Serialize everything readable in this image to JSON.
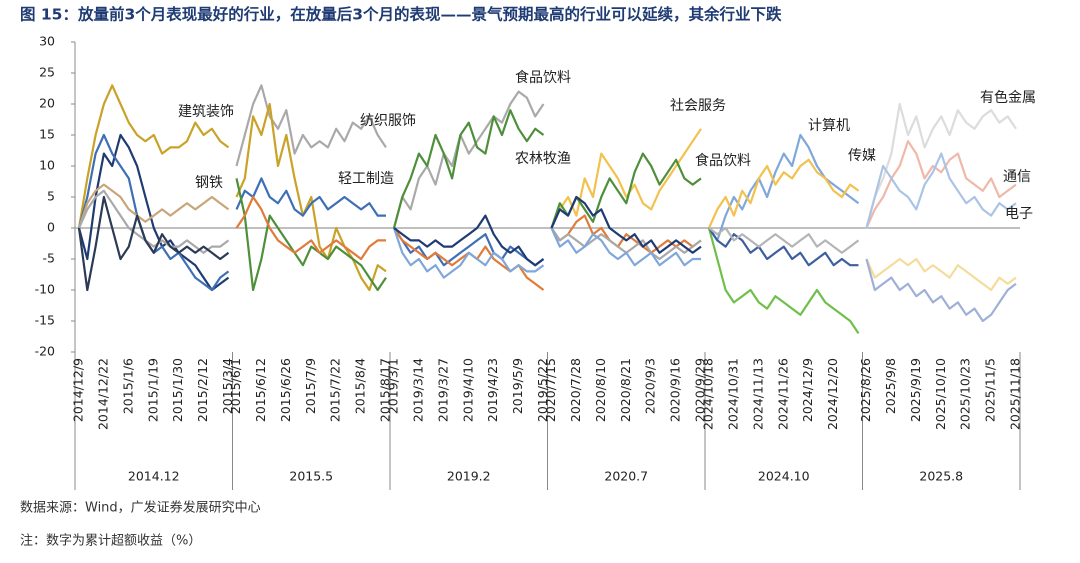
{
  "chart_data": {
    "type": "line",
    "title": "图 15：放量前3个月表现最好的行业，在放量后3个月的表现——景气预期最高的行业可以延续，其余行业下跌",
    "ylim": [
      -20,
      30
    ],
    "yticks": [
      -20,
      -15,
      -10,
      -5,
      0,
      5,
      10,
      15,
      20,
      25,
      30
    ],
    "zero_line": true,
    "groups": [
      {
        "label": "2014.12",
        "categories": [
          "2014/12/9",
          null,
          null,
          "2014/12/22",
          null,
          null,
          "2015/1/6",
          null,
          null,
          "2015/1/19",
          null,
          null,
          "2015/1/30",
          null,
          null,
          "2015/2/12",
          null,
          null,
          "2015/3/4"
        ],
        "series": [
          {
            "color": "#c9a227",
            "values": [
              0,
              8,
              15,
              20,
              23,
              20,
              17,
              15,
              14,
              15,
              12,
              13,
              13,
              14,
              17,
              15,
              16,
              14,
              13
            ]
          },
          {
            "color": "#1f3b73",
            "values": [
              0,
              -5,
              5,
              12,
              10,
              15,
              13,
              10,
              5,
              0,
              -3,
              -2,
              -4,
              -5,
              -6,
              -8,
              -10,
              -9,
              -8
            ]
          },
          {
            "color": "#3d6fb6",
            "values": [
              0,
              5,
              12,
              15,
              12,
              10,
              8,
              2,
              -2,
              -4,
              -3,
              -5,
              -4,
              -6,
              -8,
              -9,
              -10,
              -8,
              -7
            ]
          },
          {
            "color": "#c8a67a",
            "values": [
              0,
              4,
              6,
              7,
              6,
              5,
              3,
              2,
              1,
              2,
              3,
              2,
              3,
              4,
              3,
              4,
              5,
              4,
              3
            ]
          },
          {
            "color": "#a9a9a9",
            "values": [
              0,
              3,
              5,
              6,
              4,
              2,
              0,
              -1,
              -2,
              -3,
              -2,
              -3,
              -3,
              -2,
              -3,
              -4,
              -3,
              -3,
              -2
            ]
          },
          {
            "color": "#2b3a55",
            "values": [
              0,
              -10,
              -3,
              5,
              0,
              -5,
              -3,
              2,
              -2,
              -4,
              -1,
              -3,
              -4,
              -3,
              -4,
              -3,
              -4,
              -5,
              -4
            ]
          }
        ]
      },
      {
        "label": "2015.5",
        "categories": [
          "2015/6/1",
          null,
          null,
          "2015/6/12",
          null,
          null,
          "2015/6/26",
          null,
          null,
          "2015/7/9",
          null,
          null,
          "2015/7/22",
          null,
          null,
          "2015/8/4",
          null,
          null,
          "2015/8/17"
        ],
        "series": [
          {
            "color": "#a9a9a9",
            "values": [
              10,
              15,
              20,
              23,
              18,
              16,
              19,
              12,
              15,
              13,
              14,
              13,
              16,
              14,
              17,
              16,
              18,
              15,
              13
            ]
          },
          {
            "color": "#c9a227",
            "values": [
              5,
              8,
              18,
              15,
              20,
              10,
              15,
              8,
              2,
              5,
              -3,
              -5,
              0,
              -3,
              -5,
              -8,
              -10,
              -6,
              -7
            ]
          },
          {
            "color": "#3d6fb6",
            "values": [
              3,
              6,
              5,
              8,
              5,
              4,
              6,
              3,
              2,
              4,
              5,
              3,
              4,
              5,
              4,
              3,
              4,
              2,
              2
            ]
          },
          {
            "color": "#4e8f3a",
            "values": [
              8,
              2,
              -10,
              -5,
              2,
              0,
              -2,
              -4,
              -6,
              -3,
              -4,
              -5,
              -3,
              -4,
              -5,
              -6,
              -8,
              -10,
              -8
            ]
          },
          {
            "color": "#e07b39",
            "values": [
              0,
              2,
              5,
              3,
              0,
              -2,
              -3,
              -4,
              -3,
              -2,
              -4,
              -3,
              -2,
              -3,
              -4,
              -5,
              -3,
              -2,
              -2
            ]
          }
        ]
      },
      {
        "label": "2019.2",
        "categories": [
          "2019/3/1",
          null,
          null,
          "2019/3/14",
          null,
          null,
          "2019/3/27",
          null,
          null,
          "2019/4/10",
          null,
          null,
          "2019/4/23",
          null,
          null,
          "2019/5/9",
          null,
          null,
          "2019/5/22"
        ],
        "series": [
          {
            "color": "#a9a9a9",
            "values": [
              0,
              5,
              3,
              8,
              10,
              7,
              12,
              10,
              15,
              12,
              14,
              16,
              18,
              17,
              20,
              22,
              21,
              18,
              20
            ]
          },
          {
            "color": "#4e8f3a",
            "values": [
              0,
              5,
              8,
              12,
              10,
              15,
              12,
              8,
              15,
              17,
              13,
              12,
              18,
              15,
              19,
              16,
              14,
              16,
              15
            ]
          },
          {
            "color": "#3d6fb6",
            "values": [
              0,
              -2,
              -4,
              -3,
              -5,
              -4,
              -6,
              -5,
              -4,
              -3,
              -2,
              -1,
              -4,
              -5,
              -3,
              -4,
              -5,
              -6,
              -5
            ]
          },
          {
            "color": "#e07b39",
            "values": [
              0,
              -2,
              -3,
              -4,
              -5,
              -4,
              -5,
              -6,
              -5,
              -4,
              -5,
              -3,
              -5,
              -6,
              -7,
              -6,
              -8,
              -9,
              -10
            ]
          },
          {
            "color": "#7fa7d9",
            "values": [
              0,
              -4,
              -6,
              -5,
              -7,
              -6,
              -8,
              -7,
              -6,
              -4,
              -5,
              -6,
              -4,
              -5,
              -7,
              -6,
              -7,
              -7,
              -6
            ]
          },
          {
            "color": "#1f3b73",
            "values": [
              0,
              -1,
              -2,
              -2,
              -3,
              -2,
              -3,
              -3,
              -2,
              -1,
              0,
              2,
              -1,
              -3,
              -4,
              -3,
              -5,
              -6,
              -5
            ]
          }
        ]
      },
      {
        "label": "2020.7",
        "categories": [
          "2020/7/15",
          null,
          null,
          "2020/7/28",
          null,
          null,
          "2020/8/10",
          null,
          null,
          "2020/8/21",
          null,
          null,
          "2020/9/3",
          null,
          null,
          "2020/9/16",
          null,
          null,
          "2020/9/29"
        ],
        "series": [
          {
            "color": "#f2c14e",
            "values": [
              0,
              3,
              5,
              2,
              8,
              5,
              12,
              10,
              8,
              5,
              7,
              4,
              3,
              6,
              8,
              10,
              12,
              14,
              16
            ]
          },
          {
            "color": "#4e8f3a",
            "values": [
              0,
              4,
              2,
              5,
              3,
              1,
              5,
              8,
              6,
              4,
              9,
              12,
              10,
              7,
              9,
              11,
              8,
              7,
              8
            ]
          },
          {
            "color": "#e07b39",
            "values": [
              0,
              -2,
              -1,
              1,
              2,
              -1,
              0,
              -2,
              -3,
              -1,
              -2,
              -3,
              -4,
              -3,
              -2,
              -3,
              -2,
              -3,
              -2
            ]
          },
          {
            "color": "#a9a9a9",
            "values": [
              0,
              -2,
              -1,
              -2,
              -3,
              -2,
              -1,
              -2,
              -3,
              -4,
              -3,
              -2,
              -4,
              -5,
              -4,
              -3,
              -4,
              -3,
              -2
            ]
          },
          {
            "color": "#7fa7d9",
            "values": [
              0,
              -3,
              -2,
              -4,
              -3,
              -1,
              -2,
              -4,
              -5,
              -4,
              -6,
              -5,
              -4,
              -6,
              -5,
              -4,
              -6,
              -5,
              -5
            ]
          },
          {
            "color": "#1f3b73",
            "values": [
              0,
              3,
              2,
              5,
              4,
              2,
              3,
              0,
              -1,
              -2,
              -1,
              -3,
              -2,
              -4,
              -3,
              -2,
              -3,
              -4,
              -3
            ]
          }
        ]
      },
      {
        "label": "2024.10",
        "categories": [
          "2024/10/18",
          null,
          null,
          "2024/10/31",
          null,
          null,
          "2024/11/13",
          null,
          null,
          "2024/11/26",
          null,
          null,
          "2024/12/9",
          null,
          null,
          "2024/12/20",
          null,
          null,
          null
        ],
        "series": [
          {
            "color": "#7fa7d9",
            "values": [
              0,
              -2,
              2,
              5,
              3,
              6,
              8,
              5,
              9,
              12,
              10,
              15,
              13,
              10,
              8,
              7,
              6,
              5,
              4
            ]
          },
          {
            "color": "#f2c14e",
            "values": [
              0,
              3,
              5,
              2,
              6,
              4,
              8,
              10,
              7,
              9,
              8,
              10,
              11,
              9,
              8,
              6,
              5,
              7,
              6
            ]
          },
          {
            "color": "#6fbf4a",
            "values": [
              0,
              -5,
              -10,
              -12,
              -11,
              -10,
              -12,
              -13,
              -11,
              -12,
              -13,
              -14,
              -12,
              -10,
              -12,
              -13,
              -14,
              -15,
              -17
            ]
          },
          {
            "color": "#3d5f9e",
            "values": [
              0,
              -2,
              -3,
              -1,
              -2,
              -4,
              -3,
              -5,
              -4,
              -3,
              -5,
              -4,
              -6,
              -5,
              -4,
              -6,
              -5,
              -6,
              -6
            ]
          },
          {
            "color": "#b5b5b5",
            "values": [
              0,
              -1,
              0,
              -2,
              -1,
              -2,
              -3,
              -2,
              -1,
              -2,
              -3,
              -2,
              -1,
              -3,
              -2,
              -3,
              -4,
              -3,
              -2
            ]
          }
        ]
      },
      {
        "label": "2025.8",
        "categories": [
          "2025/8/26",
          null,
          null,
          "2025/9/8",
          null,
          null,
          "2025/9/19",
          null,
          null,
          "2025/10/10",
          null,
          null,
          "2025/10/23",
          null,
          null,
          "2025/11/5",
          null,
          null,
          "2025/11/18"
        ],
        "series": [
          {
            "color": "#dcdcdc",
            "values": [
              0,
              5,
              8,
              12,
              20,
              15,
              18,
              13,
              16,
              18,
              15,
              19,
              17,
              16,
              18,
              19,
              17,
              18,
              16
            ]
          },
          {
            "color": "#f0b8a8",
            "values": [
              0,
              3,
              5,
              8,
              10,
              14,
              12,
              8,
              10,
              9,
              11,
              12,
              8,
              7,
              6,
              8,
              5,
              6,
              7
            ]
          },
          {
            "color": "#aac4e6",
            "values": [
              0,
              5,
              10,
              8,
              6,
              5,
              3,
              7,
              9,
              12,
              8,
              6,
              4,
              5,
              3,
              2,
              4,
              3,
              4
            ]
          },
          {
            "color": "#f6dc9a",
            "values": [
              -5,
              -8,
              -7,
              -6,
              -5,
              -6,
              -5,
              -7,
              -6,
              -7,
              -8,
              -6,
              -7,
              -8,
              -9,
              -10,
              -8,
              -9,
              -8
            ]
          },
          {
            "color": "#9fb0d6",
            "values": [
              -5,
              -10,
              -9,
              -8,
              -10,
              -9,
              -11,
              -10,
              -12,
              -11,
              -13,
              -12,
              -14,
              -13,
              -15,
              -14,
              -12,
              -10,
              -9
            ]
          }
        ]
      }
    ],
    "annotations": [
      "建筑装饰",
      "钢铁",
      "纺织服饰",
      "轻工制造",
      "食品饮料",
      "农林牧渔",
      "社会服务",
      "食品饮料",
      "计算机",
      "传媒",
      "有色金属",
      "通信",
      "电子"
    ],
    "source": "数据来源：Wind，广发证券发展研究中心",
    "note": "注：数字为累计超额收益（%）"
  }
}
